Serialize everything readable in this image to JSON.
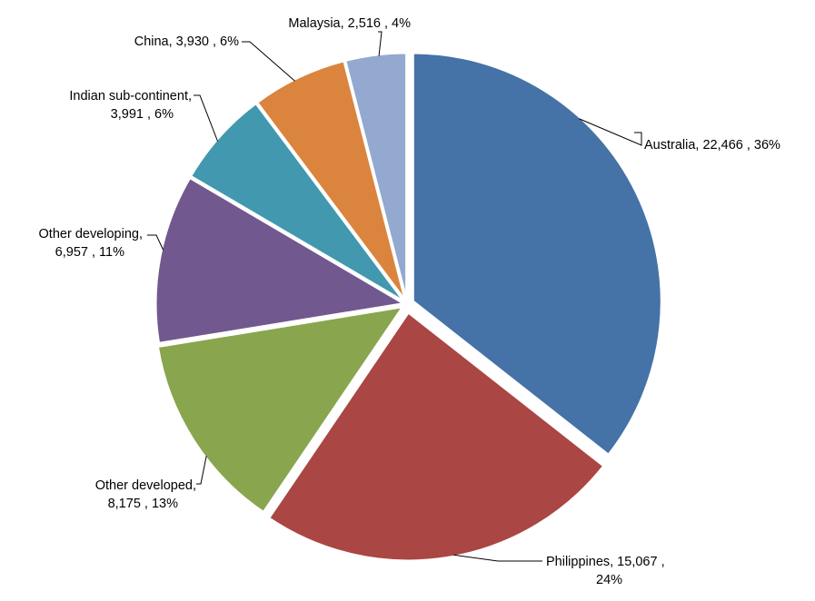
{
  "chart_data": {
    "type": "pie",
    "title": "",
    "slices": [
      {
        "name": "Australia",
        "value": 22466,
        "pct_label": "36%",
        "label_lines": [
          "Australia,  22,466 , 36%"
        ],
        "color": "#4572A7"
      },
      {
        "name": "Philippines",
        "value": 15067,
        "pct_label": "24%",
        "label_lines": [
          "Philippines,  15,067 ,",
          "24%"
        ],
        "color": "#AA4643"
      },
      {
        "name": "Other developed",
        "value": 8175,
        "pct_label": "13%",
        "label_lines": [
          "Other developed,",
          "8,175 , 13%"
        ],
        "color": "#89A54E"
      },
      {
        "name": "Other developing",
        "value": 6957,
        "pct_label": "11%",
        "label_lines": [
          "Other developing,",
          "6,957 , 11%"
        ],
        "color": "#71588F"
      },
      {
        "name": "Indian sub-continent",
        "value": 3991,
        "pct_label": "6%",
        "label_lines": [
          "Indian sub-continent,",
          "3,991 , 6%"
        ],
        "color": "#4198AF"
      },
      {
        "name": "China",
        "value": 3930,
        "pct_label": "6%",
        "label_lines": [
          "China,  3,930 , 6%"
        ],
        "color": "#DB843D"
      },
      {
        "name": "Malaysia",
        "value": 2516,
        "pct_label": "4%",
        "label_lines": [
          "Malaysia,  2,516 , 4%"
        ],
        "color": "#93A9CF"
      }
    ],
    "legend": "none",
    "data_labels": "outside with leader lines"
  }
}
